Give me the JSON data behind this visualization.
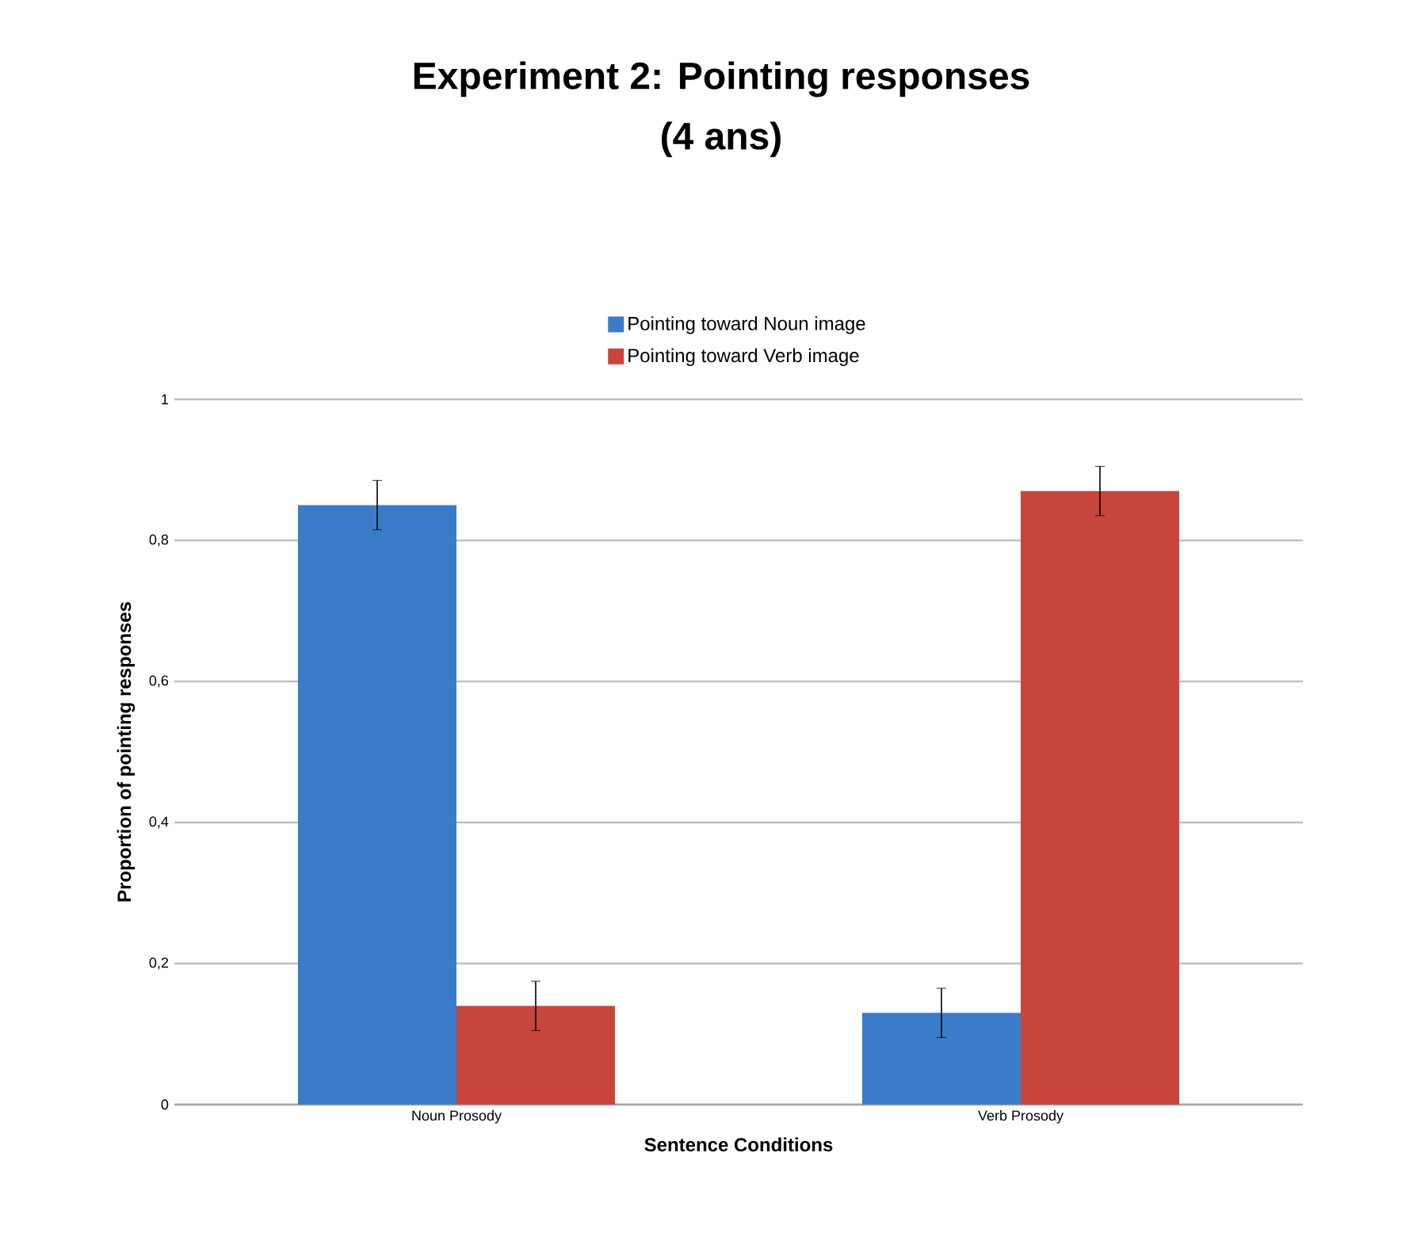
{
  "chart_data": {
    "type": "bar",
    "title": "Experiment 2: Pointing responses",
    "subtitle": "(4 ans)",
    "xlabel": "Sentence Conditions",
    "ylabel": "Proportion of pointing responses",
    "categories": [
      "Noun Prosody",
      "Verb Prosody"
    ],
    "series": [
      {
        "name": "Pointing toward Noun image",
        "color": "#3b7cc8",
        "values": [
          0.85,
          0.13
        ],
        "errors": [
          0.035,
          0.035
        ]
      },
      {
        "name": "Pointing toward Verb image",
        "color": "#c8453b",
        "values": [
          0.14,
          0.87
        ],
        "errors": [
          0.035,
          0.035
        ]
      }
    ],
    "ylim": [
      0,
      1
    ],
    "yticks": [
      0,
      {
        "value": 0.2,
        "label": "0,2"
      },
      {
        "value": 0.4,
        "label": "0,4"
      },
      {
        "value": 0.6,
        "label": "0,6"
      },
      {
        "value": 0.8,
        "label": "0,8"
      },
      1
    ],
    "grid": "y",
    "legend": "top"
  }
}
